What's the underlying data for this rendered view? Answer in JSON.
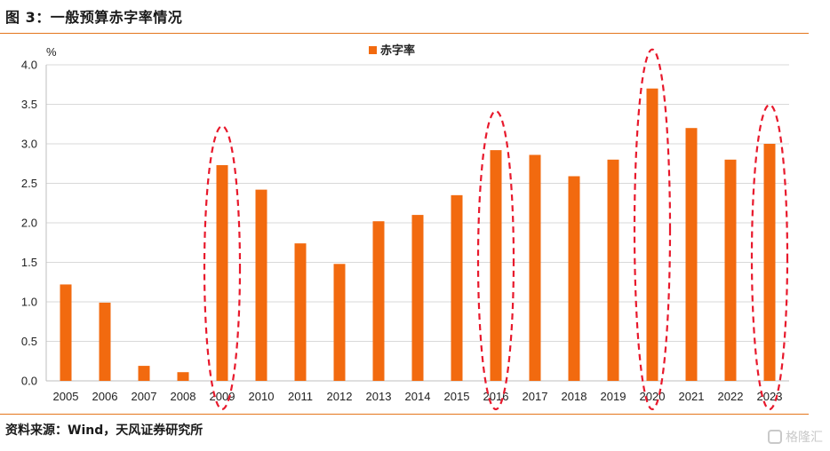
{
  "figure": {
    "title": "图 3：一般预算赤字率情况",
    "source": "资料来源：Wind，天风证券研究所",
    "watermark": "格隆汇"
  },
  "colors": {
    "bar": "#f26a0f",
    "rule": "#e4761c",
    "highlight": "#e8192c",
    "grid": "#d9d9d9"
  },
  "chart_data": {
    "type": "bar",
    "title": "",
    "xlabel": "",
    "ylabel": "%",
    "ylim": [
      0,
      4.0
    ],
    "yticks": [
      "0.0",
      "0.5",
      "1.0",
      "1.5",
      "2.0",
      "2.5",
      "3.0",
      "3.5",
      "4.0"
    ],
    "grid": true,
    "legend_position": "top-center",
    "categories": [
      "2005",
      "2006",
      "2007",
      "2008",
      "2009",
      "2010",
      "2011",
      "2012",
      "2013",
      "2014",
      "2015",
      "2016",
      "2017",
      "2018",
      "2019",
      "2020",
      "2021",
      "2022",
      "2023"
    ],
    "series": [
      {
        "name": "赤字率",
        "values": [
          1.22,
          0.99,
          0.19,
          0.11,
          2.73,
          2.42,
          1.74,
          1.48,
          2.02,
          2.1,
          2.35,
          2.92,
          2.86,
          2.59,
          2.8,
          3.7,
          3.2,
          2.8,
          3.0
        ]
      }
    ],
    "highlighted_categories": [
      "2009",
      "2016",
      "2020",
      "2023"
    ]
  }
}
